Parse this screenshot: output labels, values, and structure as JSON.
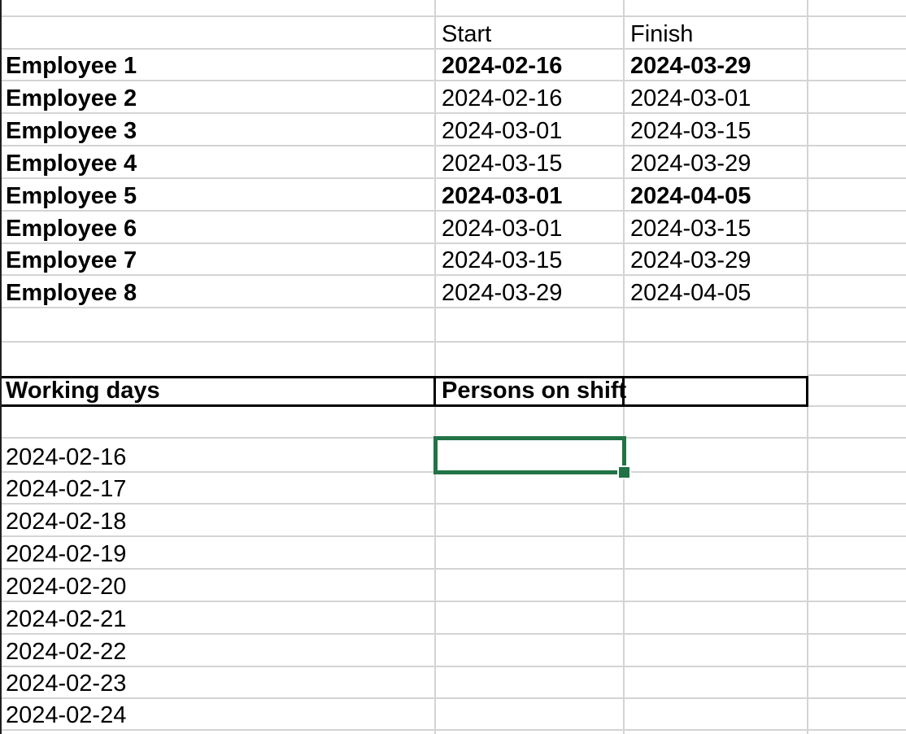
{
  "app": {
    "type": "spreadsheet-grid",
    "description": "shift schedule sheet"
  },
  "colors": {
    "background": "#ffffff",
    "grid_line": "#d4d4d4",
    "box_border": "#000000",
    "selection_green": "#217346",
    "sheet_edge": "#1f1f1f",
    "text": "#000000"
  },
  "selection": {
    "row_index": 14,
    "col_index": 1,
    "value": ""
  },
  "sheet": {
    "column_headers": [
      "",
      "Start",
      "Finish",
      ""
    ],
    "rows": [
      {
        "cells": [
          "",
          "",
          "",
          ""
        ],
        "bold": [
          0,
          0,
          0,
          0
        ]
      },
      {
        "cells": [
          "",
          "Start",
          "Finish",
          ""
        ],
        "bold": [
          0,
          0,
          0,
          0
        ]
      },
      {
        "cells": [
          "Employee 1",
          "2024-02-16",
          "2024-03-29",
          ""
        ],
        "bold": [
          1,
          1,
          1,
          0
        ]
      },
      {
        "cells": [
          "Employee 2",
          "2024-02-16",
          "2024-03-01",
          ""
        ],
        "bold": [
          1,
          0,
          0,
          0
        ]
      },
      {
        "cells": [
          "Employee 3",
          "2024-03-01",
          "2024-03-15",
          ""
        ],
        "bold": [
          1,
          0,
          0,
          0
        ]
      },
      {
        "cells": [
          "Employee 4",
          "2024-03-15",
          "2024-03-29",
          ""
        ],
        "bold": [
          1,
          0,
          0,
          0
        ]
      },
      {
        "cells": [
          "Employee 5",
          "2024-03-01",
          "2024-04-05",
          ""
        ],
        "bold": [
          1,
          1,
          1,
          0
        ]
      },
      {
        "cells": [
          "Employee 6",
          "2024-03-01",
          "2024-03-15",
          ""
        ],
        "bold": [
          1,
          0,
          0,
          0
        ]
      },
      {
        "cells": [
          "Employee 7",
          "2024-03-15",
          "2024-03-29",
          ""
        ],
        "bold": [
          1,
          0,
          0,
          0
        ]
      },
      {
        "cells": [
          "Employee 8",
          "2024-03-29",
          "2024-04-05",
          ""
        ],
        "bold": [
          1,
          0,
          0,
          0
        ]
      },
      {
        "cells": [
          "",
          "",
          "",
          ""
        ],
        "bold": [
          0,
          0,
          0,
          0
        ]
      },
      {
        "cells": [
          "",
          "",
          "",
          ""
        ],
        "bold": [
          0,
          0,
          0,
          0
        ]
      },
      {
        "cells": [
          "Working days",
          "Persons on shift",
          "",
          ""
        ],
        "bold": [
          1,
          1,
          0,
          0
        ],
        "boxed": true
      },
      {
        "cells": [
          "",
          "",
          "",
          ""
        ],
        "bold": [
          0,
          0,
          0,
          0
        ]
      },
      {
        "cells": [
          "2024-02-16",
          "",
          "",
          ""
        ],
        "bold": [
          0,
          0,
          0,
          0
        ]
      },
      {
        "cells": [
          "2024-02-17",
          "",
          "",
          ""
        ],
        "bold": [
          0,
          0,
          0,
          0
        ]
      },
      {
        "cells": [
          "2024-02-18",
          "",
          "",
          ""
        ],
        "bold": [
          0,
          0,
          0,
          0
        ]
      },
      {
        "cells": [
          "2024-02-19",
          "",
          "",
          ""
        ],
        "bold": [
          0,
          0,
          0,
          0
        ]
      },
      {
        "cells": [
          "2024-02-20",
          "",
          "",
          ""
        ],
        "bold": [
          0,
          0,
          0,
          0
        ]
      },
      {
        "cells": [
          "2024-02-21",
          "",
          "",
          ""
        ],
        "bold": [
          0,
          0,
          0,
          0
        ]
      },
      {
        "cells": [
          "2024-02-22",
          "",
          "",
          ""
        ],
        "bold": [
          0,
          0,
          0,
          0
        ]
      },
      {
        "cells": [
          "2024-02-23",
          "",
          "",
          ""
        ],
        "bold": [
          0,
          0,
          0,
          0
        ]
      },
      {
        "cells": [
          "2024-02-24",
          "",
          "",
          ""
        ],
        "bold": [
          0,
          0,
          0,
          0
        ]
      },
      {
        "cells": [
          "",
          "",
          "",
          ""
        ],
        "bold": [
          0,
          0,
          0,
          0
        ]
      }
    ]
  }
}
